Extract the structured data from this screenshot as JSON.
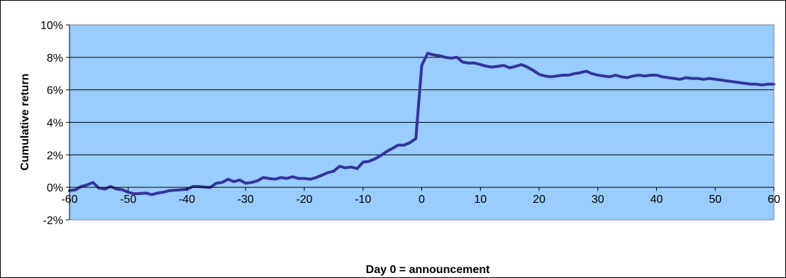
{
  "chart_data": {
    "type": "line",
    "title": "",
    "xlabel": "Day 0 = announcement",
    "ylabel": "Cumulative return",
    "xlim": [
      -60,
      60
    ],
    "ylim": [
      -2,
      10
    ],
    "x_ticks": [
      -60,
      -50,
      -40,
      -30,
      -20,
      -10,
      0,
      10,
      20,
      30,
      40,
      50,
      60
    ],
    "y_ticks": [
      "-2%",
      "0%",
      "2%",
      "4%",
      "6%",
      "8%",
      "10%"
    ],
    "grid": true,
    "legend": "none",
    "colors": {
      "plot_background": "#99ccff",
      "line": "#333399",
      "gridline": "#000000",
      "outer_border": "#000000"
    },
    "series": [
      {
        "x": [
          -60,
          -59,
          -58,
          -57,
          -56,
          -55,
          -54,
          -53,
          -52,
          -51,
          -50,
          -49,
          -48,
          -47,
          -46,
          -45,
          -44,
          -43,
          -42,
          -41,
          -40,
          -39,
          -38,
          -37,
          -36,
          -35,
          -34,
          -33,
          -32,
          -31,
          -30,
          -29,
          -28,
          -27,
          -26,
          -25,
          -24,
          -23,
          -22,
          -21,
          -20,
          -19,
          -18,
          -17,
          -16,
          -15,
          -14,
          -13,
          -12,
          -11,
          -10,
          -9,
          -8,
          -7,
          -6,
          -5,
          -4,
          -3,
          -2,
          -1,
          0,
          1,
          2,
          3,
          4,
          5,
          6,
          7,
          8,
          9,
          10,
          11,
          12,
          13,
          14,
          15,
          16,
          17,
          18,
          19,
          20,
          21,
          22,
          23,
          24,
          25,
          26,
          27,
          28,
          29,
          30,
          31,
          32,
          33,
          34,
          35,
          36,
          37,
          38,
          39,
          40,
          41,
          42,
          43,
          44,
          45,
          46,
          47,
          48,
          49,
          50,
          51,
          52,
          53,
          54,
          55,
          56,
          57,
          58,
          59,
          60
        ],
        "values": [
          -0.2,
          -0.15,
          0.05,
          0.15,
          0.3,
          -0.05,
          -0.1,
          0.05,
          -0.1,
          -0.15,
          -0.3,
          -0.4,
          -0.38,
          -0.35,
          -0.45,
          -0.35,
          -0.3,
          -0.2,
          -0.18,
          -0.15,
          -0.12,
          0.05,
          0.05,
          0.02,
          0.0,
          0.25,
          0.3,
          0.5,
          0.35,
          0.45,
          0.25,
          0.3,
          0.4,
          0.6,
          0.55,
          0.5,
          0.6,
          0.55,
          0.65,
          0.55,
          0.55,
          0.5,
          0.6,
          0.75,
          0.9,
          1.0,
          1.3,
          1.2,
          1.25,
          1.15,
          1.55,
          1.6,
          1.75,
          1.95,
          2.2,
          2.4,
          2.6,
          2.6,
          2.75,
          3.0,
          7.5,
          8.25,
          8.15,
          8.1,
          8.0,
          7.95,
          8.0,
          7.7,
          7.65,
          7.65,
          7.55,
          7.45,
          7.4,
          7.45,
          7.5,
          7.35,
          7.45,
          7.55,
          7.4,
          7.2,
          6.95,
          6.85,
          6.8,
          6.85,
          6.9,
          6.9,
          7.0,
          7.05,
          7.15,
          7.0,
          6.9,
          6.85,
          6.8,
          6.9,
          6.8,
          6.75,
          6.85,
          6.9,
          6.85,
          6.9,
          6.9,
          6.8,
          6.75,
          6.7,
          6.65,
          6.75,
          6.7,
          6.7,
          6.65,
          6.7,
          6.65,
          6.6,
          6.55,
          6.5,
          6.45,
          6.4,
          6.35,
          6.35,
          6.3,
          6.35,
          6.35
        ]
      }
    ]
  }
}
